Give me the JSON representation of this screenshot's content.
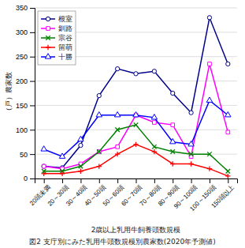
{
  "chart_data": {
    "type": "line",
    "title": "図2  支庁別にみた乳用牛頭数規模別農家数(2020年予測値)",
    "x_label": "2歳以上乳用牛飼養頭数規模",
    "y_label": "（戸）農家数",
    "categories": [
      "20頭未満",
      "20～30頭",
      "30～40頭",
      "40～50頭",
      "50～60頭",
      "60～70頭",
      "70～80頭",
      "80～90頭",
      "90～100頭",
      "100～150頭",
      "150頭以上"
    ],
    "series": [
      {
        "name": "根室",
        "color": "#00008B",
        "marker": "circle",
        "line_style": "solid",
        "values": [
          25,
          22,
          68,
          170,
          225,
          215,
          220,
          175,
          135,
          330,
          235
        ]
      },
      {
        "name": "釧路",
        "color": "#FF00FF",
        "marker": "square",
        "line_style": "solid",
        "values": [
          25,
          20,
          30,
          55,
          65,
          130,
          115,
          110,
          45,
          235,
          95
        ]
      },
      {
        "name": "宗谷",
        "color": "#008000",
        "marker": "x",
        "line_style": "solid",
        "values": [
          15,
          15,
          25,
          55,
          100,
          110,
          65,
          55,
          50,
          50,
          15
        ]
      },
      {
        "name": "留萌",
        "color": "#FF0000",
        "marker": "plus",
        "line_style": "solid",
        "values": [
          10,
          10,
          15,
          25,
          50,
          70,
          55,
          30,
          30,
          20,
          5
        ]
      },
      {
        "name": "十勝",
        "color": "#0000FF",
        "marker": "triangle",
        "line_style": "solid",
        "values": [
          60,
          45,
          80,
          130,
          130,
          130,
          125,
          75,
          70,
          160,
          130
        ]
      }
    ],
    "ylim": [
      0,
      350
    ],
    "yticks": [
      0,
      50,
      100,
      150,
      200,
      250,
      300,
      350
    ],
    "grid": true,
    "legend": "upper left"
  }
}
